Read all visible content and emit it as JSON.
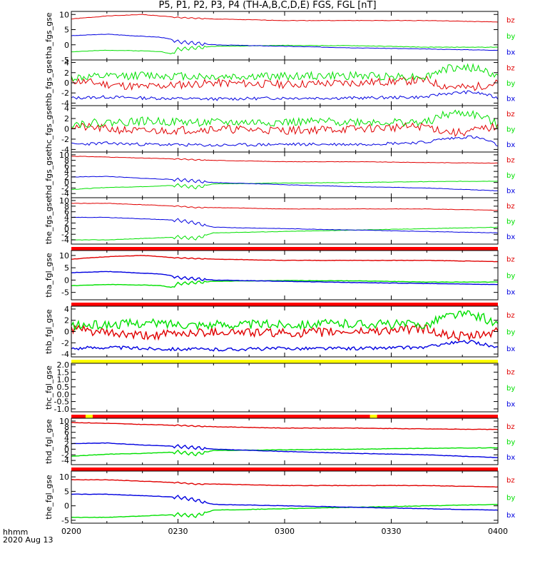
{
  "title": "P5, P1, P2, P3, P4 (TH-A,B,C,D,E) FGS, FGL [nT]",
  "footer": {
    "time_label": "hhmm",
    "date_label": "2020 Aug 13"
  },
  "x_axis": {
    "range": [
      "0200",
      "0400"
    ],
    "ticks": [
      "0200",
      "0230",
      "0300",
      "0330",
      "0400"
    ]
  },
  "colors": {
    "bz": "#e00000",
    "by": "#00e000",
    "bx": "#0000e0",
    "state_red": "#ff0000",
    "state_yellow": "#ffff00",
    "frame": "#000000"
  },
  "chart_data": [
    {
      "type": "line",
      "ylabel": "tha_fgs_gse",
      "ylim": [
        -5,
        11
      ],
      "yticks": [
        "10",
        "5",
        "0",
        "-5"
      ],
      "yvals": [
        10,
        5,
        0,
        -5
      ],
      "bar_below": "none",
      "series": [
        {
          "name": "bz",
          "x": [
            0,
            10,
            20,
            25,
            28,
            30,
            40,
            60,
            80,
            100,
            120
          ],
          "y": [
            8.5,
            9.5,
            10,
            9.5,
            9.2,
            9,
            8.5,
            8,
            8,
            8,
            7.5
          ]
        },
        {
          "name": "by",
          "x": [
            0,
            10,
            20,
            25,
            28,
            30,
            40,
            60,
            80,
            100,
            120
          ],
          "y": [
            -2.3,
            -1.8,
            -2,
            -2.2,
            -3,
            -1.5,
            -0.5,
            -0.2,
            -0.3,
            -0.8,
            -0.8
          ]
        },
        {
          "name": "bx",
          "x": [
            0,
            10,
            20,
            25,
            28,
            30,
            40,
            60,
            80,
            100,
            120
          ],
          "y": [
            3,
            3.5,
            2.8,
            2.5,
            1.8,
            1,
            0,
            -0.5,
            -1,
            -1.4,
            -1.8
          ]
        }
      ]
    },
    {
      "type": "line",
      "ylabel": "thb_fgs_gse",
      "ylim": [
        -4.5,
        4.5
      ],
      "yticks": [
        "4",
        "2",
        "0",
        "-2",
        "-4"
      ],
      "yvals": [
        4,
        2,
        0,
        -2,
        -4
      ],
      "bar_below": "none",
      "series": [
        {
          "name": "bz",
          "x": [
            0,
            10,
            20,
            40,
            60,
            80,
            100,
            104,
            108,
            112,
            116,
            120
          ],
          "y": [
            0.5,
            -0.3,
            -0.8,
            0,
            -0.3,
            0,
            0.5,
            -0.5,
            -0.8,
            -1,
            -0.5,
            0
          ]
        },
        {
          "name": "by",
          "x": [
            0,
            10,
            20,
            40,
            60,
            80,
            100,
            104,
            108,
            112,
            116,
            120
          ],
          "y": [
            1,
            1.2,
            1.5,
            1.2,
            1.3,
            1.4,
            1.2,
            2.5,
            3,
            3,
            2.5,
            1
          ]
        },
        {
          "name": "bx",
          "x": [
            0,
            10,
            20,
            40,
            60,
            80,
            100,
            104,
            108,
            112,
            116,
            120
          ],
          "y": [
            -3,
            -2.8,
            -3,
            -3.2,
            -3,
            -3,
            -2.8,
            -2.2,
            -2,
            -1.8,
            -2.2,
            -3
          ]
        }
      ]
    },
    {
      "type": "line",
      "ylabel": "thc_fgs_gse",
      "ylim": [
        -4.5,
        4.5
      ],
      "yticks": [
        "4",
        "2",
        "0",
        "-2",
        "-4"
      ],
      "yvals": [
        4,
        2,
        0,
        -2,
        -4
      ],
      "bar_below": "none",
      "series": [
        {
          "name": "bz",
          "x": [
            0,
            10,
            20,
            40,
            60,
            80,
            100,
            104,
            108,
            112,
            116,
            120
          ],
          "y": [
            0.5,
            0,
            -0.5,
            0,
            -0.3,
            0,
            0.5,
            -0.3,
            -0.8,
            -0.5,
            0,
            0.5
          ]
        },
        {
          "name": "by",
          "x": [
            0,
            10,
            20,
            40,
            60,
            80,
            100,
            104,
            108,
            112,
            116,
            120
          ],
          "y": [
            1,
            1.2,
            1.5,
            1.2,
            1.3,
            1.4,
            1.2,
            2.5,
            3,
            3,
            2.2,
            0.8
          ]
        },
        {
          "name": "bx",
          "x": [
            0,
            10,
            20,
            40,
            60,
            80,
            100,
            104,
            108,
            112,
            116,
            120
          ],
          "y": [
            -3,
            -2.8,
            -3,
            -3.2,
            -3,
            -3,
            -2.6,
            -2,
            -1.8,
            -1.5,
            -2,
            -3.2
          ]
        }
      ]
    },
    {
      "type": "line",
      "ylabel": "thd_fgs_gse",
      "ylim": [
        -5.5,
        11
      ],
      "yticks": [
        "10",
        "8",
        "6",
        "4",
        "2",
        "0",
        "-2",
        "-4"
      ],
      "yvals": [
        10,
        8,
        6,
        4,
        2,
        0,
        -2,
        -4
      ],
      "bar_below": "none",
      "series": [
        {
          "name": "bz",
          "x": [
            0,
            10,
            20,
            30,
            35,
            40,
            60,
            80,
            100,
            120
          ],
          "y": [
            9.5,
            9.2,
            8.8,
            8.5,
            8.2,
            8,
            7.5,
            7.5,
            7.2,
            7
          ]
        },
        {
          "name": "by",
          "x": [
            0,
            10,
            20,
            30,
            35,
            40,
            60,
            80,
            100,
            120
          ],
          "y": [
            -2.5,
            -1.8,
            -1.5,
            -1,
            -1.8,
            -0.5,
            -0.2,
            0,
            0.3,
            0.5
          ]
        },
        {
          "name": "bx",
          "x": [
            0,
            10,
            20,
            30,
            35,
            40,
            60,
            80,
            100,
            120
          ],
          "y": [
            2,
            2.2,
            1.5,
            1,
            0.5,
            0,
            -0.8,
            -1.5,
            -2,
            -3
          ]
        }
      ]
    },
    {
      "type": "line",
      "ylabel": "the_fgs_gse",
      "ylim": [
        -5.5,
        11
      ],
      "yticks": [
        "10",
        "8",
        "6",
        "4",
        "2",
        "0",
        "-2",
        "-4"
      ],
      "yvals": [
        10,
        8,
        6,
        4,
        2,
        0,
        -2,
        -4
      ],
      "bar_below": "red",
      "series": [
        {
          "name": "bz",
          "x": [
            0,
            10,
            20,
            30,
            35,
            40,
            60,
            80,
            100,
            120
          ],
          "y": [
            9,
            9,
            8.5,
            8,
            7.5,
            7.5,
            7,
            7,
            7,
            6.5
          ]
        },
        {
          "name": "by",
          "x": [
            0,
            10,
            20,
            30,
            35,
            40,
            60,
            80,
            100,
            120
          ],
          "y": [
            -4,
            -4,
            -3.5,
            -3,
            -3.5,
            -1.5,
            -1,
            -0.5,
            0,
            0.5
          ]
        },
        {
          "name": "bx",
          "x": [
            0,
            10,
            20,
            30,
            35,
            40,
            60,
            80,
            100,
            120
          ],
          "y": [
            4,
            4,
            3.5,
            3,
            2,
            0.5,
            0,
            -0.5,
            -1,
            -1.5
          ]
        }
      ]
    },
    {
      "type": "line",
      "ylabel": "tha_fgl_gse",
      "ylim": [
        -8,
        12
      ],
      "yticks": [
        "10",
        "5",
        "0",
        "-5"
      ],
      "yvals": [
        10,
        5,
        0,
        -5
      ],
      "bar_below": "red",
      "series": [
        {
          "name": "bz",
          "x": [
            0,
            10,
            20,
            25,
            28,
            30,
            40,
            60,
            80,
            100,
            120
          ],
          "y": [
            8.5,
            9.5,
            10,
            9.5,
            9.2,
            9,
            8.5,
            8,
            8,
            8,
            7.5
          ]
        },
        {
          "name": "by",
          "x": [
            0,
            10,
            20,
            25,
            28,
            30,
            40,
            60,
            80,
            100,
            120
          ],
          "y": [
            -2.3,
            -1.8,
            -2,
            -2.2,
            -3,
            -1.5,
            -0.5,
            -0.2,
            -0.3,
            -0.8,
            -0.8
          ]
        },
        {
          "name": "bx",
          "x": [
            0,
            10,
            20,
            25,
            28,
            30,
            40,
            60,
            80,
            100,
            120
          ],
          "y": [
            3,
            3.5,
            2.8,
            2.5,
            1.8,
            1,
            0,
            -0.5,
            -1,
            -1.4,
            -1.8
          ]
        }
      ]
    },
    {
      "type": "line",
      "ylabel": "thb_fgl_gse",
      "ylim": [
        -4.5,
        4.5
      ],
      "yticks": [
        "4",
        "2",
        "0",
        "-2",
        "-4"
      ],
      "yvals": [
        4,
        2,
        0,
        -2,
        -4
      ],
      "bar_below": "yellow",
      "series": [
        {
          "name": "bz",
          "x": [
            0,
            10,
            20,
            40,
            60,
            80,
            100,
            104,
            108,
            112,
            116,
            120
          ],
          "y": [
            0.5,
            -0.3,
            -0.8,
            0,
            -0.3,
            0,
            0.5,
            -0.5,
            -0.8,
            -1,
            -0.5,
            0
          ]
        },
        {
          "name": "by",
          "x": [
            0,
            10,
            20,
            40,
            60,
            80,
            100,
            104,
            108,
            112,
            116,
            120
          ],
          "y": [
            1,
            1.2,
            1.5,
            1.2,
            1.3,
            1.4,
            1.2,
            2.5,
            3,
            3,
            2.5,
            1
          ]
        },
        {
          "name": "bx",
          "x": [
            0,
            10,
            20,
            40,
            60,
            80,
            100,
            104,
            108,
            112,
            116,
            120
          ],
          "y": [
            -3,
            -2.8,
            -3,
            -3.2,
            -3,
            -3,
            -2.8,
            -2.2,
            -2,
            -1.8,
            -2.2,
            -3
          ]
        }
      ]
    },
    {
      "type": "line",
      "ylabel": "thc_fgl_gse",
      "ylim": [
        -1.2,
        2.1
      ],
      "yticks": [
        "2.0",
        "1.5",
        "1.0",
        "0.5",
        "0.0",
        "-0.5",
        "-1.0"
      ],
      "yvals": [
        2,
        1.5,
        1,
        0.5,
        0,
        -0.5,
        -1
      ],
      "bar_below": "red_yellow",
      "series": []
    },
    {
      "type": "line",
      "ylabel": "thd_fgl_gse",
      "ylim": [
        -5.5,
        11
      ],
      "yticks": [
        "10",
        "8",
        "6",
        "4",
        "2",
        "0",
        "-2",
        "-4"
      ],
      "yvals": [
        10,
        8,
        6,
        4,
        2,
        0,
        -2,
        -4
      ],
      "bar_below": "red",
      "series": [
        {
          "name": "bz",
          "x": [
            0,
            10,
            20,
            30,
            35,
            40,
            60,
            80,
            100,
            120
          ],
          "y": [
            9.5,
            9.2,
            8.8,
            8.5,
            8.2,
            8,
            7.5,
            7.5,
            7.2,
            7
          ]
        },
        {
          "name": "by",
          "x": [
            0,
            10,
            20,
            30,
            35,
            40,
            60,
            80,
            100,
            120
          ],
          "y": [
            -2.5,
            -1.8,
            -1.5,
            -1,
            -1.8,
            -0.5,
            -0.2,
            0,
            0.3,
            0.5
          ]
        },
        {
          "name": "bx",
          "x": [
            0,
            10,
            20,
            30,
            35,
            40,
            60,
            80,
            100,
            120
          ],
          "y": [
            2,
            2.2,
            1.5,
            1,
            0.5,
            0,
            -0.8,
            -1.5,
            -2,
            -3
          ]
        }
      ]
    },
    {
      "type": "line",
      "ylabel": "the_fgl_gse",
      "ylim": [
        -6,
        12
      ],
      "yticks": [
        "10",
        "5",
        "0",
        "-5"
      ],
      "yvals": [
        10,
        5,
        0,
        -5
      ],
      "bar_below": "none",
      "series": [
        {
          "name": "bz",
          "x": [
            0,
            10,
            20,
            30,
            35,
            40,
            60,
            80,
            100,
            120
          ],
          "y": [
            9,
            9,
            8.5,
            8,
            7.5,
            7.5,
            7,
            7,
            7,
            6.5
          ]
        },
        {
          "name": "by",
          "x": [
            0,
            10,
            20,
            30,
            35,
            40,
            60,
            80,
            100,
            120
          ],
          "y": [
            -4,
            -4,
            -3.5,
            -3,
            -3.5,
            -1.5,
            -1,
            -0.5,
            0,
            0.5
          ]
        },
        {
          "name": "bx",
          "x": [
            0,
            10,
            20,
            30,
            35,
            40,
            60,
            80,
            100,
            120
          ],
          "y": [
            4,
            4,
            3.5,
            3,
            2,
            0.5,
            0,
            -0.5,
            -1,
            -1.5
          ]
        }
      ]
    }
  ]
}
